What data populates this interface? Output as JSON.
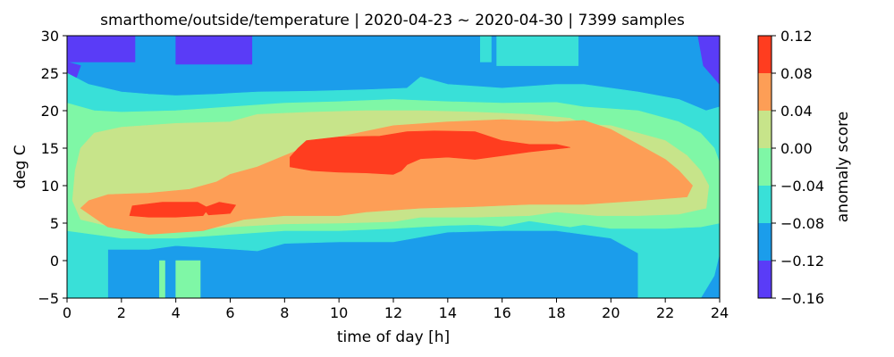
{
  "chart_data": {
    "type": "contourf",
    "title": "smarthome/outside/temperature | 2020-04-23 ~ 2020-04-30 | 7399 samples",
    "xlabel": "time of day [h]",
    "ylabel": "deg C",
    "xlim": [
      0,
      24
    ],
    "ylim": [
      -5,
      30
    ],
    "xticks": [
      "0",
      "2",
      "4",
      "6",
      "8",
      "10",
      "12",
      "14",
      "16",
      "18",
      "20",
      "22",
      "24"
    ],
    "yticks": [
      "−5",
      "0",
      "5",
      "10",
      "15",
      "20",
      "25",
      "30"
    ],
    "colorbar": {
      "label": "anomaly score",
      "levels": [
        -0.16,
        -0.12,
        -0.08,
        -0.04,
        0.0,
        0.04,
        0.08,
        0.12
      ],
      "tick_labels": [
        "−0.16",
        "−0.12",
        "−0.08",
        "−0.04",
        "0.00",
        "0.04",
        "0.08",
        "0.12"
      ],
      "colors": [
        "#5a3cf7",
        "#1b9deb",
        "#39e0d8",
        "#7ff7a6",
        "#c7e48a",
        "#fd9e56",
        "#ff3d1f"
      ]
    },
    "regions": [
      {
        "level": 1,
        "points": [
          [
            0,
            30
          ],
          [
            24,
            30
          ],
          [
            24,
            -5
          ],
          [
            0,
            -5
          ]
        ]
      },
      {
        "level": 0,
        "points": [
          [
            0,
            30
          ],
          [
            2.5,
            30
          ],
          [
            2.5,
            26.5
          ],
          [
            0,
            26.5
          ]
        ]
      },
      {
        "level": 0,
        "points": [
          [
            0,
            26.5
          ],
          [
            0.5,
            26
          ],
          [
            0.3,
            24
          ],
          [
            0,
            22
          ]
        ]
      },
      {
        "level": 0,
        "points": [
          [
            4,
            30
          ],
          [
            6.8,
            30
          ],
          [
            6.8,
            26.2
          ],
          [
            4,
            26.2
          ]
        ]
      },
      {
        "level": 0,
        "points": [
          [
            23.2,
            30
          ],
          [
            24,
            30
          ],
          [
            24,
            23.5
          ],
          [
            23.4,
            26
          ]
        ]
      },
      {
        "level": 2,
        "points": [
          [
            15.8,
            30
          ],
          [
            18.8,
            30
          ],
          [
            18.8,
            26
          ],
          [
            15.8,
            26
          ]
        ]
      },
      {
        "level": 2,
        "points": [
          [
            15.2,
            30
          ],
          [
            15.6,
            30
          ],
          [
            15.6,
            26.5
          ],
          [
            15.2,
            26.5
          ]
        ]
      },
      {
        "level": 2,
        "points": [
          [
            0,
            25
          ],
          [
            0.8,
            23.5
          ],
          [
            2,
            22.5
          ],
          [
            3,
            22.2
          ],
          [
            4,
            22
          ],
          [
            5.5,
            22.2
          ],
          [
            7,
            22.5
          ],
          [
            9,
            22.6
          ],
          [
            11,
            22.8
          ],
          [
            12.5,
            23
          ],
          [
            13,
            24.5
          ],
          [
            14,
            23.5
          ],
          [
            16,
            23
          ],
          [
            18,
            23.5
          ],
          [
            19,
            23.5
          ],
          [
            21,
            22.5
          ],
          [
            22.5,
            21.5
          ],
          [
            23.5,
            20
          ],
          [
            24,
            20.5
          ],
          [
            24,
            1
          ],
          [
            23.8,
            -2
          ],
          [
            23.3,
            -5
          ],
          [
            21,
            -5
          ],
          [
            21,
            1
          ],
          [
            20,
            3
          ],
          [
            18,
            4
          ],
          [
            16,
            4
          ],
          [
            14,
            3.8
          ],
          [
            12,
            2.5
          ],
          [
            10,
            2.5
          ],
          [
            8,
            2.3
          ],
          [
            7,
            1.3
          ],
          [
            5,
            1.8
          ],
          [
            4,
            2
          ],
          [
            3,
            1.5
          ],
          [
            1.5,
            1.5
          ],
          [
            1.5,
            -5
          ],
          [
            0,
            -5
          ]
        ]
      },
      {
        "level": 3,
        "points": [
          [
            0,
            21
          ],
          [
            1,
            20
          ],
          [
            2,
            19.8
          ],
          [
            4,
            20
          ],
          [
            6,
            20.5
          ],
          [
            8,
            21
          ],
          [
            10,
            21.2
          ],
          [
            12,
            21.5
          ],
          [
            14,
            21.2
          ],
          [
            16,
            21
          ],
          [
            18,
            21.1
          ],
          [
            19,
            20.5
          ],
          [
            21,
            20
          ],
          [
            22.5,
            18.5
          ],
          [
            23.3,
            17
          ],
          [
            23.8,
            15
          ],
          [
            24,
            13
          ],
          [
            24,
            5
          ],
          [
            23.3,
            4.5
          ],
          [
            22,
            4.3
          ],
          [
            20,
            4.3
          ],
          [
            19,
            4.8
          ],
          [
            18.5,
            4.5
          ],
          [
            17,
            5.3
          ],
          [
            16,
            4.6
          ],
          [
            15,
            4.8
          ],
          [
            14,
            4.7
          ],
          [
            12,
            4.3
          ],
          [
            10,
            4
          ],
          [
            8,
            4
          ],
          [
            6,
            3.5
          ],
          [
            4,
            3
          ],
          [
            2,
            3
          ],
          [
            0,
            4
          ]
        ]
      },
      {
        "level": 3,
        "points": [
          [
            3.4,
            0
          ],
          [
            3.6,
            0
          ],
          [
            3.6,
            -5
          ],
          [
            3.4,
            -5
          ]
        ]
      },
      {
        "level": 3,
        "points": [
          [
            4,
            0
          ],
          [
            4.9,
            0
          ],
          [
            4.9,
            -5
          ],
          [
            4,
            -5
          ]
        ]
      },
      {
        "level": 4,
        "points": [
          [
            0.5,
            15
          ],
          [
            1,
            17
          ],
          [
            2,
            17.8
          ],
          [
            4,
            18.3
          ],
          [
            6,
            18.5
          ],
          [
            7,
            19.5
          ],
          [
            9,
            19.8
          ],
          [
            11,
            20
          ],
          [
            13,
            20
          ],
          [
            15,
            19.8
          ],
          [
            17,
            19.5
          ],
          [
            18.5,
            19
          ],
          [
            19,
            18.2
          ],
          [
            20,
            18
          ],
          [
            21,
            17
          ],
          [
            22,
            16
          ],
          [
            22.8,
            14
          ],
          [
            23.3,
            12
          ],
          [
            23.6,
            10
          ],
          [
            23.5,
            7
          ],
          [
            22.5,
            6.2
          ],
          [
            21,
            6
          ],
          [
            19.5,
            6
          ],
          [
            18,
            6.5
          ],
          [
            17,
            6
          ],
          [
            15,
            5.8
          ],
          [
            13,
            5.8
          ],
          [
            12,
            5.2
          ],
          [
            10,
            5
          ],
          [
            8,
            4.9
          ],
          [
            6,
            4.5
          ],
          [
            4,
            4
          ],
          [
            2,
            4.2
          ],
          [
            0.5,
            5.5
          ],
          [
            0.2,
            8
          ],
          [
            0.3,
            12
          ]
        ]
      },
      {
        "level": 5,
        "points": [
          [
            0.5,
            7
          ],
          [
            0.8,
            8
          ],
          [
            1.5,
            8.8
          ],
          [
            3,
            9
          ],
          [
            4.5,
            9.5
          ],
          [
            5.5,
            10.5
          ],
          [
            6,
            11.5
          ],
          [
            7,
            12.5
          ],
          [
            8,
            14
          ],
          [
            9,
            15.5
          ],
          [
            10,
            16.5
          ],
          [
            12,
            18
          ],
          [
            14,
            18.5
          ],
          [
            16,
            18.8
          ],
          [
            18,
            18.5
          ],
          [
            19,
            18.7
          ],
          [
            20,
            17.5
          ],
          [
            21,
            15.5
          ],
          [
            22,
            13.5
          ],
          [
            22.5,
            12
          ],
          [
            23,
            10
          ],
          [
            22.8,
            8.5
          ],
          [
            21,
            8
          ],
          [
            19,
            7.5
          ],
          [
            17,
            7.5
          ],
          [
            15,
            7.2
          ],
          [
            13,
            7
          ],
          [
            11,
            6.5
          ],
          [
            10,
            6
          ],
          [
            8,
            6
          ],
          [
            6.5,
            5.5
          ],
          [
            5,
            4
          ],
          [
            3,
            3.5
          ],
          [
            1.5,
            4.5
          ]
        ]
      },
      {
        "level": 6,
        "points": [
          [
            8.5,
            15
          ],
          [
            8.8,
            16
          ],
          [
            10,
            16.5
          ],
          [
            11.5,
            16.6
          ],
          [
            12.5,
            17.2
          ],
          [
            13.5,
            17.3
          ],
          [
            15,
            17.2
          ],
          [
            16,
            16
          ],
          [
            17,
            15.5
          ],
          [
            18,
            15.5
          ],
          [
            18.5,
            15.1
          ],
          [
            17,
            14.5
          ],
          [
            16,
            14
          ],
          [
            15,
            13.5
          ],
          [
            14,
            13.8
          ],
          [
            13,
            13.6
          ],
          [
            12.5,
            12.8
          ],
          [
            12.3,
            12
          ],
          [
            12,
            11.5
          ],
          [
            11,
            11.7
          ],
          [
            10,
            11.8
          ],
          [
            9,
            12
          ],
          [
            8.2,
            12.5
          ],
          [
            8.2,
            13.8
          ]
        ]
      },
      {
        "level": 6,
        "points": [
          [
            2.3,
            6
          ],
          [
            2.4,
            7.3
          ],
          [
            3.5,
            7.8
          ],
          [
            4.8,
            7.8
          ],
          [
            5.2,
            7
          ],
          [
            5,
            6
          ],
          [
            4,
            5.8
          ],
          [
            3,
            5.8
          ]
        ]
      },
      {
        "level": 6,
        "points": [
          [
            5,
            7
          ],
          [
            5.6,
            7.8
          ],
          [
            6.2,
            7.4
          ],
          [
            6,
            6.3
          ],
          [
            5.2,
            6.1
          ]
        ]
      }
    ]
  }
}
